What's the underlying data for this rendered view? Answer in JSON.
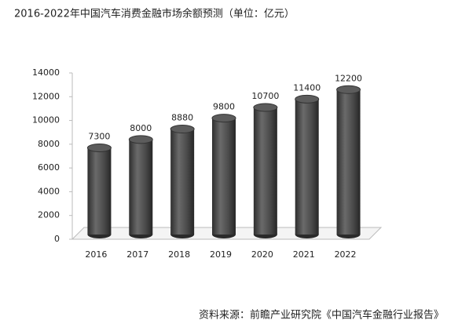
{
  "chart_data": {
    "type": "bar",
    "title": "2016-2022年中国汽车消费金融市场余额预测（单位：亿元）",
    "categories": [
      "2016",
      "2017",
      "2018",
      "2019",
      "2020",
      "2021",
      "2022"
    ],
    "values": [
      7300,
      8000,
      8880,
      9800,
      10700,
      11400,
      12200
    ],
    "color": "#4a4a4a",
    "ylim": [
      0,
      14000
    ],
    "yticks": [
      0,
      2000,
      4000,
      6000,
      8000,
      10000,
      12000,
      14000
    ],
    "grid": false,
    "source": "资料来源：前瞻产业研究院《中国汽车金融行业报告》"
  }
}
